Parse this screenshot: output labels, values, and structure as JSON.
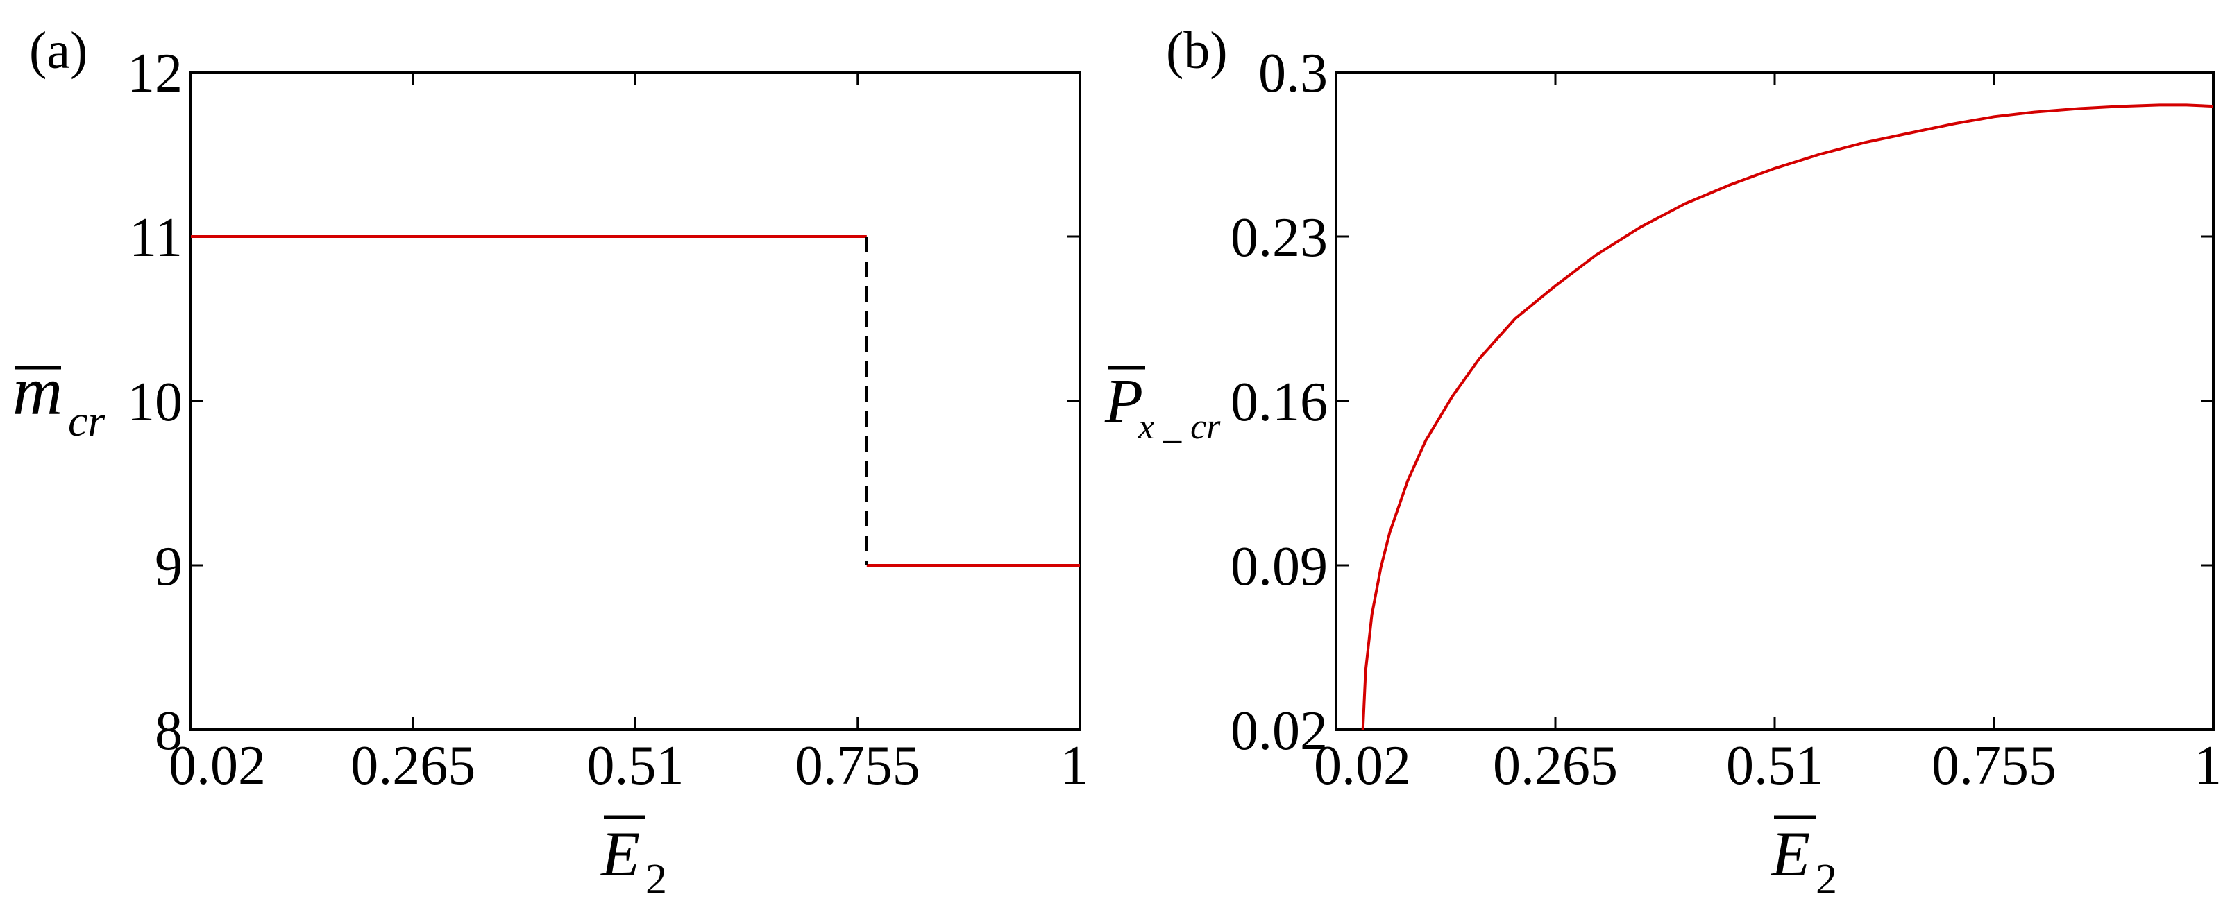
{
  "panels": [
    {
      "label": "(a)",
      "xlabel_main": "E",
      "xlabel_sub": "2",
      "ylabel_main": "m",
      "ylabel_sub": "cr"
    },
    {
      "label": "(b)",
      "xlabel_main": "E",
      "xlabel_sub": "2",
      "ylabel_main": "P",
      "ylabel_sub": "x _ cr"
    }
  ],
  "colors": {
    "series": "#d40000",
    "connector": "#000000",
    "axes": "#000000"
  },
  "chart_data": [
    {
      "type": "line",
      "xlabel": "E̅₂",
      "ylabel": "m̅_cr",
      "xlim": [
        0.02,
        1
      ],
      "ylim": [
        8,
        12
      ],
      "x_ticks": [
        0.02,
        0.265,
        0.51,
        0.755,
        1
      ],
      "x_tick_labels": [
        "0.02",
        "0.265",
        "0.51",
        "0.755",
        "1"
      ],
      "y_ticks": [
        8,
        9,
        10,
        11,
        12
      ],
      "y_tick_labels": [
        "8",
        "9",
        "10",
        "11",
        "12"
      ],
      "grid": false,
      "series": [
        {
          "style": "solid",
          "color": "#d40000",
          "x": [
            0.02,
            0.765
          ],
          "y": [
            11,
            11
          ]
        },
        {
          "style": "solid",
          "color": "#d40000",
          "x": [
            0.765,
            1
          ],
          "y": [
            9,
            9
          ]
        },
        {
          "style": "dashed",
          "color": "#000000",
          "x": [
            0.765,
            0.765
          ],
          "y": [
            11,
            9
          ]
        }
      ]
    },
    {
      "type": "line",
      "xlabel": "E̅₂",
      "ylabel": "P̅_x_cr",
      "xlim": [
        0.02,
        1
      ],
      "ylim": [
        0.02,
        0.3
      ],
      "x_ticks": [
        0.02,
        0.265,
        0.51,
        0.755,
        1
      ],
      "x_tick_labels": [
        "0.02",
        "0.265",
        "0.51",
        "0.755",
        "1"
      ],
      "y_ticks": [
        0.02,
        0.09,
        0.16,
        0.23,
        0.3
      ],
      "y_tick_labels": [
        "0.02",
        "0.09",
        "0.16",
        "0.23",
        "0.3"
      ],
      "grid": false,
      "series": [
        {
          "style": "solid",
          "color": "#d40000",
          "x": [
            0.05,
            0.053,
            0.06,
            0.07,
            0.08,
            0.1,
            0.12,
            0.15,
            0.18,
            0.22,
            0.265,
            0.31,
            0.36,
            0.41,
            0.46,
            0.51,
            0.56,
            0.61,
            0.66,
            0.71,
            0.755,
            0.8,
            0.85,
            0.9,
            0.94,
            0.97,
            1.0
          ],
          "y": [
            0.02,
            0.045,
            0.069,
            0.089,
            0.104,
            0.126,
            0.143,
            0.162,
            0.178,
            0.195,
            0.209,
            0.222,
            0.234,
            0.244,
            0.252,
            0.259,
            0.265,
            0.27,
            0.274,
            0.278,
            0.281,
            0.283,
            0.2845,
            0.2855,
            0.286,
            0.286,
            0.2855
          ]
        }
      ]
    }
  ]
}
